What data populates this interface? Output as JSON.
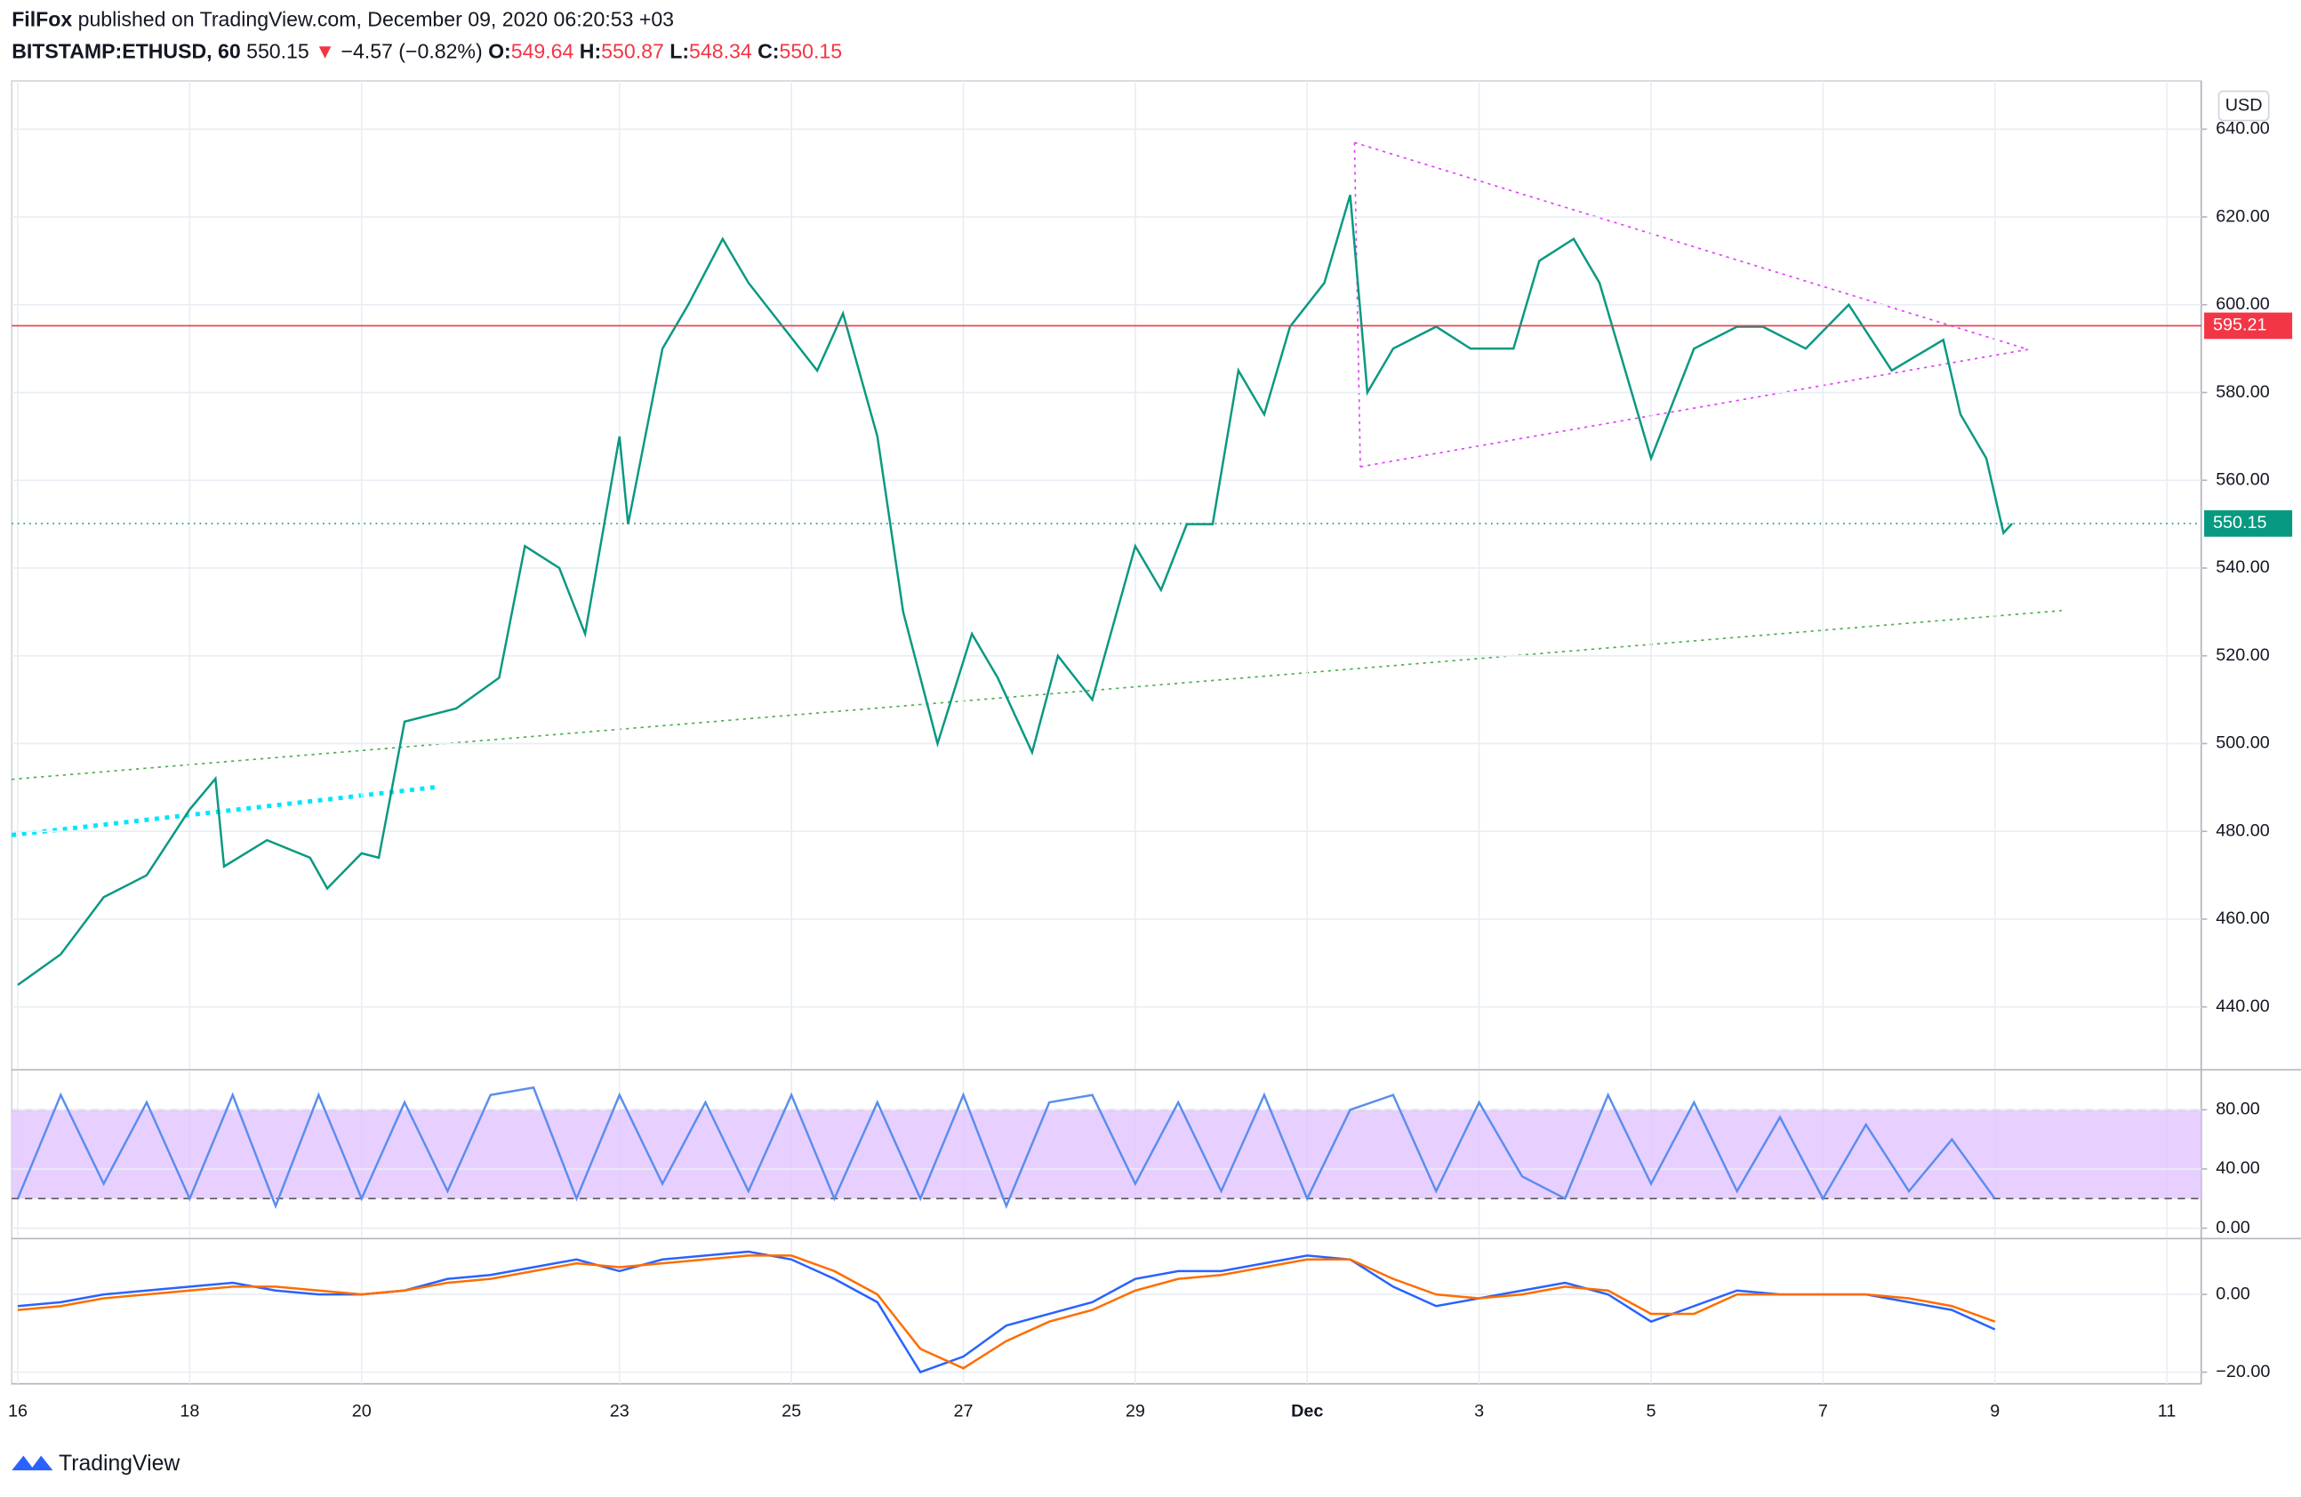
{
  "header": {
    "author": "FilFox",
    "published": "published on TradingView.com, December 09, 2020 06:20:53 +03",
    "symbol": "BITSTAMP:ETHUSD, 60",
    "last": "550.15",
    "arrow": "▼",
    "change": "−4.57 (−0.82%)",
    "ohlc": [
      {
        "label": "O:",
        "value": "549.64"
      },
      {
        "label": "H:",
        "value": "550.87"
      },
      {
        "label": "L:",
        "value": "548.34"
      },
      {
        "label": "C:",
        "value": "550.15"
      }
    ]
  },
  "footer": {
    "brand": "TradingView"
  },
  "chart_data": [
    {
      "type": "line",
      "y_unit": "USD",
      "x": [
        0,
        0.5,
        1,
        1.5,
        2,
        2.3,
        2.4,
        2.9,
        3.4,
        3.6,
        4,
        4.2,
        4.5,
        5.1,
        5.6,
        5.9,
        6.3,
        6.6,
        7,
        7.1,
        7.5,
        7.8,
        8.2,
        8.5,
        8.9,
        9.3,
        9.6,
        10,
        10.3,
        10.7,
        11.1,
        11.4,
        11.8,
        12.1,
        12.5,
        13,
        13.3,
        13.6,
        13.9,
        14.2,
        14.5,
        14.8,
        15.2,
        15.5,
        15.7,
        16,
        16.5,
        16.9,
        17.4,
        17.7,
        18.1,
        18.4,
        18.7,
        19,
        19.5,
        20,
        20.3,
        20.8,
        21.3,
        21.8,
        22.4,
        22.6,
        22.9,
        23.1,
        23.2
      ],
      "series": [
        {
          "color": "#089981",
          "values": [
            445,
            452,
            465,
            470,
            485,
            492,
            472,
            478,
            474,
            467,
            475,
            474,
            505,
            508,
            515,
            545,
            540,
            525,
            570,
            550,
            590,
            600,
            615,
            605,
            595,
            585,
            598,
            570,
            530,
            500,
            525,
            515,
            498,
            520,
            510,
            545,
            535,
            550,
            550,
            585,
            575,
            595,
            605,
            625,
            580,
            590,
            595,
            590,
            590,
            610,
            615,
            605,
            585,
            565,
            590,
            595,
            595,
            590,
            600,
            585,
            592,
            575,
            565,
            548,
            550.15
          ]
        }
      ],
      "price_lines": [
        {
          "value": 595.21,
          "color": "#f23645"
        },
        {
          "value": 550.15,
          "color": "#089981"
        }
      ],
      "xlim": [
        -0.07,
        25.4
      ],
      "xticks": [
        {
          "value": 0,
          "label": "16"
        },
        {
          "value": 2,
          "label": "18"
        },
        {
          "value": 4,
          "label": "20"
        },
        {
          "value": 7,
          "label": "23"
        },
        {
          "value": 9,
          "label": "25"
        },
        {
          "value": 11,
          "label": "27"
        },
        {
          "value": 13,
          "label": "29"
        },
        {
          "value": 15,
          "label": "Dec"
        },
        {
          "value": 17,
          "label": "3"
        },
        {
          "value": 19,
          "label": "5"
        },
        {
          "value": 21,
          "label": "7"
        },
        {
          "value": 23,
          "label": "9"
        },
        {
          "value": 25,
          "label": "11"
        }
      ],
      "ylim": [
        426,
        651
      ],
      "yticks": [
        {
          "value": 440,
          "label": "440.00"
        },
        {
          "value": 460,
          "label": "460.00"
        },
        {
          "value": 480,
          "label": "480.00"
        },
        {
          "value": 500,
          "label": "500.00"
        },
        {
          "value": 520,
          "label": "520.00"
        },
        {
          "value": 540,
          "label": "540.00"
        },
        {
          "value": 560,
          "label": "560.00"
        },
        {
          "value": 580,
          "label": "580.00"
        },
        {
          "value": 600,
          "label": "600.00"
        },
        {
          "value": 620,
          "label": "620.00"
        },
        {
          "value": 640,
          "label": "640.00"
        }
      ],
      "grid": true
    },
    {
      "type": "line",
      "band": [
        20,
        80
      ],
      "band_color": "#e1c4ff",
      "x": [
        0,
        0.5,
        1,
        1.5,
        2,
        2.5,
        3,
        3.5,
        4,
        4.5,
        5,
        5.5,
        6,
        6.5,
        7,
        7.5,
        8,
        8.5,
        9,
        9.5,
        10,
        10.5,
        11,
        11.5,
        12,
        12.5,
        13,
        13.5,
        14,
        14.5,
        15,
        15.5,
        16,
        16.5,
        17,
        17.5,
        18,
        18.5,
        19,
        19.5,
        20,
        20.5,
        21,
        21.5,
        22,
        22.5,
        23
      ],
      "series": [
        {
          "color": "#5b8def",
          "values": [
            20,
            90,
            30,
            85,
            20,
            90,
            15,
            90,
            20,
            85,
            25,
            90,
            95,
            20,
            90,
            30,
            85,
            25,
            90,
            20,
            85,
            20,
            90,
            15,
            85,
            90,
            30,
            85,
            25,
            90,
            20,
            80,
            90,
            25,
            85,
            35,
            20,
            90,
            30,
            85,
            25,
            75,
            20,
            70,
            25,
            60,
            20
          ]
        }
      ],
      "xlim": [
        -0.07,
        25.4
      ],
      "ylim": [
        -6,
        106
      ],
      "yticks": [
        {
          "value": 0,
          "label": "0.00"
        },
        {
          "value": 40,
          "label": "40.00"
        },
        {
          "value": 80,
          "label": "80.00"
        }
      ]
    },
    {
      "type": "line",
      "x": [
        0,
        0.5,
        1,
        1.5,
        2,
        2.5,
        3,
        3.5,
        4,
        4.5,
        5,
        5.5,
        6,
        6.5,
        7,
        7.5,
        8,
        8.5,
        9,
        9.5,
        10,
        10.5,
        11,
        11.5,
        12,
        12.5,
        13,
        13.5,
        14,
        14.5,
        15,
        15.5,
        16,
        16.5,
        17,
        17.5,
        18,
        18.5,
        19,
        19.5,
        20,
        20.5,
        21,
        21.5,
        22,
        22.5,
        23
      ],
      "series": [
        {
          "color": "#2962ff",
          "values": [
            -3,
            -2,
            0,
            1,
            2,
            3,
            1,
            0,
            0,
            1,
            4,
            5,
            7,
            9,
            6,
            9,
            10,
            11,
            9,
            4,
            -2,
            -20,
            -16,
            -8,
            -5,
            -2,
            4,
            6,
            6,
            8,
            10,
            9,
            2,
            -3,
            -1,
            1,
            3,
            0,
            -7,
            -3,
            1,
            0,
            0,
            0,
            -2,
            -4,
            -9
          ]
        },
        {
          "color": "#ff6d00",
          "values": [
            -4,
            -3,
            -1,
            0,
            1,
            2,
            2,
            1,
            0,
            1,
            3,
            4,
            6,
            8,
            7,
            8,
            9,
            10,
            10,
            6,
            0,
            -14,
            -19,
            -12,
            -7,
            -4,
            1,
            4,
            5,
            7,
            9,
            9,
            4,
            0,
            -1,
            0,
            2,
            1,
            -5,
            -5,
            0,
            0,
            0,
            0,
            -1,
            -3,
            -7
          ]
        }
      ],
      "xlim": [
        -0.07,
        25.4
      ],
      "ylim": [
        -23,
        14
      ],
      "yticks": [
        {
          "value": -20,
          "label": "−20.00"
        },
        {
          "value": 0,
          "label": "0.00"
        }
      ]
    }
  ]
}
